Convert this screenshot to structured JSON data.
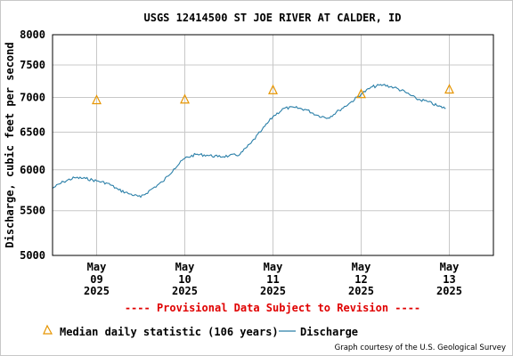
{
  "chart_data": {
    "type": "line",
    "title": "USGS 12414500 ST JOE RIVER AT CALDER, ID",
    "ylabel": "Discharge, cubic feet per second",
    "xlabel": "",
    "ylim": [
      5000,
      8000
    ],
    "y_scale": "log",
    "yticks": [
      {
        "value": 5000,
        "label": "5000"
      },
      {
        "value": 5500,
        "label": "5500"
      },
      {
        "value": 6000,
        "label": "6000"
      },
      {
        "value": 6500,
        "label": "6500"
      },
      {
        "value": 7000,
        "label": "7000"
      },
      {
        "value": 7500,
        "label": "7500"
      },
      {
        "value": 8000,
        "label": "8000"
      }
    ],
    "xlim": [
      "2025-05-08 12:00",
      "2025-05-13 12:00"
    ],
    "xticks": [
      {
        "date": "2025-05-09",
        "month": "May",
        "day": "09",
        "year": "2025"
      },
      {
        "date": "2025-05-10",
        "month": "May",
        "day": "10",
        "year": "2025"
      },
      {
        "date": "2025-05-11",
        "month": "May",
        "day": "11",
        "year": "2025"
      },
      {
        "date": "2025-05-12",
        "month": "May",
        "day": "12",
        "year": "2025"
      },
      {
        "date": "2025-05-13",
        "month": "May",
        "day": "13",
        "year": "2025"
      }
    ],
    "grid": true,
    "series": [
      {
        "name": "Discharge",
        "color": "#2a7fa8",
        "points": [
          [
            "2025-05-08 12:00",
            5770
          ],
          [
            "2025-05-08 15:00",
            5850
          ],
          [
            "2025-05-08 18:00",
            5900
          ],
          [
            "2025-05-08 21:00",
            5890
          ],
          [
            "2025-05-09 00:00",
            5860
          ],
          [
            "2025-05-09 03:00",
            5830
          ],
          [
            "2025-05-09 06:00",
            5750
          ],
          [
            "2025-05-09 09:00",
            5700
          ],
          [
            "2025-05-09 12:00",
            5660
          ],
          [
            "2025-05-09 15:00",
            5760
          ],
          [
            "2025-05-09 18:00",
            5850
          ],
          [
            "2025-05-09 21:00",
            6010
          ],
          [
            "2025-05-10 00:00",
            6150
          ],
          [
            "2025-05-10 03:00",
            6200
          ],
          [
            "2025-05-10 06:00",
            6190
          ],
          [
            "2025-05-10 09:00",
            6170
          ],
          [
            "2025-05-10 12:00",
            6180
          ],
          [
            "2025-05-10 15:00",
            6200
          ],
          [
            "2025-05-10 18:00",
            6350
          ],
          [
            "2025-05-10 21:00",
            6530
          ],
          [
            "2025-05-11 00:00",
            6720
          ],
          [
            "2025-05-11 03:00",
            6840
          ],
          [
            "2025-05-11 06:00",
            6850
          ],
          [
            "2025-05-11 09:00",
            6820
          ],
          [
            "2025-05-11 12:00",
            6740
          ],
          [
            "2025-05-11 15:00",
            6700
          ],
          [
            "2025-05-11 18:00",
            6810
          ],
          [
            "2025-05-11 21:00",
            6920
          ],
          [
            "2025-05-12 00:00",
            7050
          ],
          [
            "2025-05-12 03:00",
            7160
          ],
          [
            "2025-05-12 06:00",
            7190
          ],
          [
            "2025-05-12 09:00",
            7150
          ],
          [
            "2025-05-12 12:00",
            7080
          ],
          [
            "2025-05-12 15:00",
            6980
          ],
          [
            "2025-05-12 18:00",
            6940
          ],
          [
            "2025-05-12 21:00",
            6870
          ],
          [
            "2025-05-12 23:00",
            6840
          ]
        ]
      },
      {
        "name": "Median daily statistic (106 years)",
        "marker": "triangle",
        "color": "#e69500",
        "points": [
          [
            "2025-05-09 00:00",
            6960
          ],
          [
            "2025-05-10 00:00",
            6970
          ],
          [
            "2025-05-11 00:00",
            7110
          ],
          [
            "2025-05-12 00:00",
            7050
          ],
          [
            "2025-05-13 00:00",
            7120
          ]
        ]
      }
    ]
  },
  "footer": {
    "provisional": "---- Provisional Data Subject to Revision ----",
    "credit": "Graph courtesy of the U.S. Geological Survey"
  }
}
